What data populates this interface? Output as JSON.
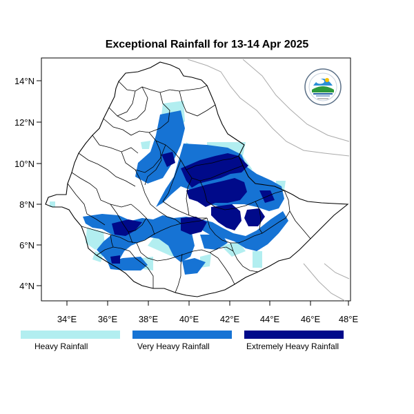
{
  "title": "Exceptional Rainfall for 13-14 Apr 2025",
  "axes": {
    "lon_ticks": [
      "34°E",
      "36°E",
      "38°E",
      "40°E",
      "42°E",
      "44°E",
      "46°E",
      "48°E"
    ],
    "lat_ticks": [
      "14°N",
      "12°N",
      "10°N",
      "8°N",
      "6°N",
      "4°N"
    ]
  },
  "legend": [
    {
      "label": "Heavy Rainfall",
      "color": "#b2eef0"
    },
    {
      "label": "Very Heavy Rainfall",
      "color": "#1673d4"
    },
    {
      "label": "Extremely Heavy Rainfall",
      "color": "#000a8a"
    }
  ],
  "logo": {
    "text_top": "ETHIOPIAN METEOROLOGY INSTITUTE",
    "text_bottom": "Ethiopian Meteorology Institute",
    "year": "EMI"
  },
  "colors": {
    "border": "#000000",
    "neighbor_border": "#aaaaaa",
    "frame": "#000000"
  }
}
